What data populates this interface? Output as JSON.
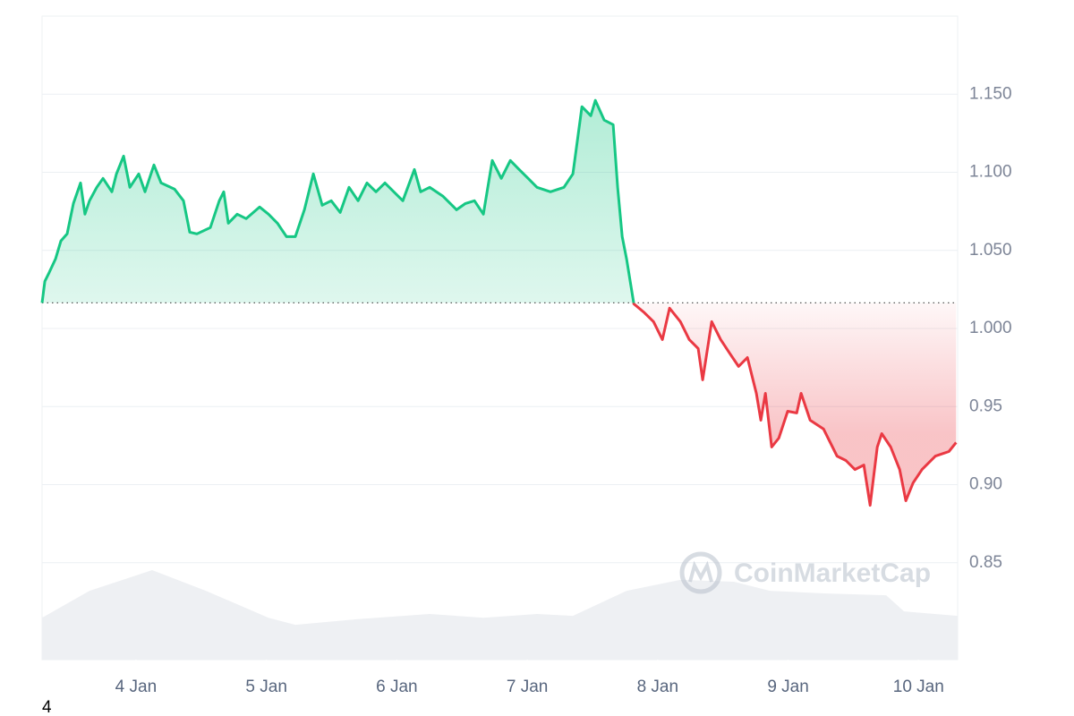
{
  "chart_data": {
    "type": "baseline-line",
    "watermark": "CoinMarketCap",
    "footer_text": "4",
    "up_color": "#16c784",
    "down_color": "#ea3943",
    "baseline": 1.0164,
    "xlim": [
      3.28,
      10.3
    ],
    "ylim": [
      0.788,
      1.2
    ],
    "xticks": [
      {
        "value": 4,
        "label": "4 Jan"
      },
      {
        "value": 5,
        "label": "5 Jan"
      },
      {
        "value": 6,
        "label": "6 Jan"
      },
      {
        "value": 7,
        "label": "7 Jan"
      },
      {
        "value": 8,
        "label": "8 Jan"
      },
      {
        "value": 9,
        "label": "9 Jan"
      },
      {
        "value": 10,
        "label": "10 Jan"
      }
    ],
    "yticks": [
      {
        "value": 0.85,
        "label": "0.85"
      },
      {
        "value": 0.9,
        "label": "0.90"
      },
      {
        "value": 0.95,
        "label": "0.95"
      },
      {
        "value": 1.0,
        "label": "1.000"
      },
      {
        "value": 1.05,
        "label": "1.050"
      },
      {
        "value": 1.1,
        "label": "1.100"
      },
      {
        "value": 1.15,
        "label": "1.150"
      }
    ],
    "grid": true,
    "x": [
      3.28,
      3.301,
      3.335,
      3.383,
      3.424,
      3.472,
      3.52,
      3.575,
      3.609,
      3.644,
      3.699,
      3.747,
      3.815,
      3.85,
      3.905,
      3.953,
      4.021,
      4.069,
      4.138,
      4.193,
      4.296,
      4.364,
      4.412,
      4.467,
      4.57,
      4.639,
      4.673,
      4.708,
      4.776,
      4.845,
      4.948,
      5.016,
      5.085,
      5.154,
      5.222,
      5.291,
      5.36,
      5.428,
      5.497,
      5.566,
      5.634,
      5.703,
      5.771,
      5.84,
      5.909,
      5.977,
      6.046,
      6.135,
      6.183,
      6.252,
      6.355,
      6.458,
      6.526,
      6.595,
      6.664,
      6.732,
      6.801,
      6.87,
      6.938,
      7.007,
      7.075,
      7.178,
      7.281,
      7.35,
      7.419,
      7.487,
      7.522,
      7.59,
      7.659,
      7.693,
      7.728,
      7.762,
      7.817,
      7.898,
      7.968,
      8.036,
      8.091,
      8.174,
      8.242,
      8.311,
      8.345,
      8.414,
      8.483,
      8.551,
      8.62,
      8.688,
      8.757,
      8.791,
      8.826,
      8.874,
      8.929,
      8.997,
      9.066,
      9.1,
      9.169,
      9.272,
      9.375,
      9.443,
      9.512,
      9.581,
      9.629,
      9.684,
      9.718,
      9.787,
      9.855,
      9.903,
      9.958,
      10.027,
      10.13,
      10.233,
      10.288
    ],
    "values": [
      1.0164,
      1.0302,
      1.0359,
      1.0445,
      1.056,
      1.0606,
      1.08,
      1.0932,
      1.0732,
      1.0818,
      1.0904,
      1.0961,
      1.0875,
      1.099,
      1.1104,
      1.0904,
      1.099,
      1.0875,
      1.1047,
      1.0932,
      1.0892,
      1.0818,
      1.0617,
      1.0606,
      1.0646,
      1.0818,
      1.0875,
      1.0674,
      1.0732,
      1.0703,
      1.0778,
      1.0732,
      1.0674,
      1.0588,
      1.0588,
      1.076,
      1.099,
      1.0789,
      1.0818,
      1.0743,
      1.0904,
      1.0818,
      1.0932,
      1.0875,
      1.0932,
      1.0875,
      1.0818,
      1.1018,
      1.0875,
      1.0904,
      1.0846,
      1.076,
      1.08,
      1.0818,
      1.0732,
      1.1076,
      1.0961,
      1.1076,
      1.1018,
      1.0961,
      1.0904,
      1.0875,
      1.0904,
      1.099,
      1.142,
      1.1362,
      1.146,
      1.1334,
      1.1305,
      1.0904,
      1.0588,
      1.0445,
      1.0158,
      1.0101,
      1.0044,
      0.9929,
      1.013,
      1.0044,
      0.9929,
      0.9872,
      0.9671,
      1.0044,
      0.9929,
      0.9843,
      0.9757,
      0.9814,
      0.9585,
      0.9413,
      0.9585,
      0.9241,
      0.9298,
      0.947,
      0.9459,
      0.9585,
      0.9413,
      0.9356,
      0.9183,
      0.9155,
      0.9097,
      0.9126,
      0.8868,
      0.9241,
      0.9327,
      0.9241,
      0.9097,
      0.8897,
      0.9011,
      0.9097,
      0.9183,
      0.9212,
      0.927
    ],
    "volume": {
      "color": "#eef0f3",
      "lim": [
        0,
        100
      ],
      "x": [
        3.28,
        3.644,
        4.124,
        4.536,
        5.016,
        5.222,
        5.703,
        6.252,
        6.664,
        7.075,
        7.35,
        7.762,
        8.174,
        8.585,
        8.86,
        9.272,
        9.752,
        9.889,
        10.3
      ],
      "values": [
        6.5,
        10.7,
        13.9,
        10.7,
        6.5,
        5.4,
        6.3,
        7.1,
        6.5,
        7.1,
        6.8,
        10.7,
        12.4,
        12.1,
        10.7,
        10.3,
        10.0,
        7.5,
        6.8
      ]
    }
  }
}
